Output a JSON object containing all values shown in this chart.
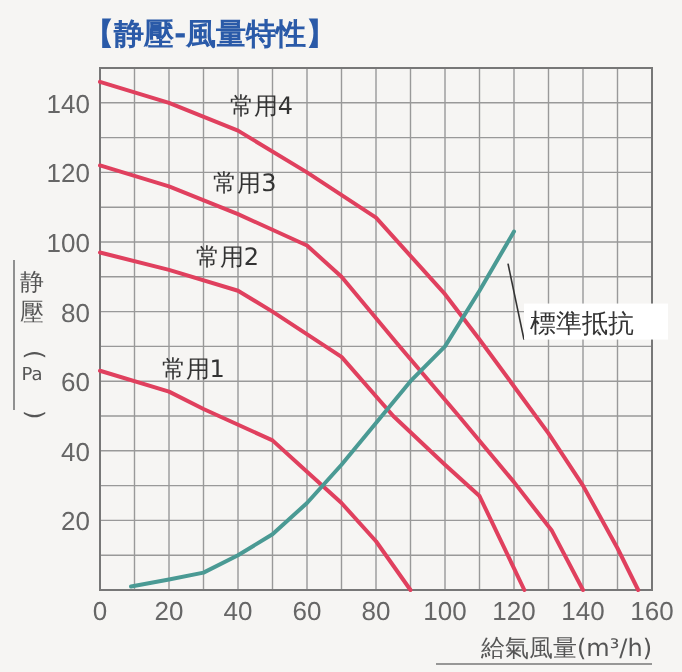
{
  "chart_data": {
    "type": "line",
    "title": "【静壓-風量特性】",
    "xlabel": "給氣風量(m³/h)",
    "ylabel": "静壓(Pa)",
    "xlim": [
      0,
      160
    ],
    "ylim": [
      0,
      150
    ],
    "xticks": [
      0,
      {
        "value": 10,
        "label": null
      },
      20,
      {
        "value": 30,
        "label": null
      },
      40,
      {
        "value": 50,
        "label": null
      },
      60,
      {
        "value": 70,
        "label": null
      },
      80,
      {
        "value": 90,
        "label": null
      },
      100,
      {
        "value": 110,
        "label": null
      },
      120,
      {
        "value": 130,
        "label": null
      },
      140,
      {
        "value": 150,
        "label": null
      },
      160
    ],
    "yticks": [
      {
        "value": 10,
        "label": null
      },
      20,
      {
        "value": 30,
        "label": null
      },
      40,
      {
        "value": 50,
        "label": null
      },
      60,
      {
        "value": 70,
        "label": null
      },
      80,
      {
        "value": 90,
        "label": null
      },
      100,
      {
        "value": 110,
        "label": null
      },
      120,
      {
        "value": 130,
        "label": null
      },
      140,
      {
        "value": 150,
        "label": null
      }
    ],
    "grid": true,
    "marker": "none",
    "line_style": "solid",
    "series": [
      {
        "name": "常用1",
        "color": "#e0405e",
        "x": [
          0,
          20,
          30,
          50,
          60,
          70,
          80,
          90
        ],
        "values": [
          63,
          57,
          52,
          43,
          34,
          25,
          14,
          0
        ]
      },
      {
        "name": "常用2",
        "color": "#e0405e",
        "x": [
          0,
          20,
          40,
          50,
          70,
          85,
          100,
          110,
          123
        ],
        "values": [
          97,
          92,
          86,
          80,
          67,
          50,
          36,
          27,
          0
        ]
      },
      {
        "name": "常用3",
        "color": "#e0405e",
        "x": [
          0,
          20,
          40,
          60,
          70,
          86,
          104,
          120,
          131,
          140
        ],
        "values": [
          122,
          116,
          108,
          99,
          90,
          71,
          50,
          31,
          17,
          0
        ]
      },
      {
        "name": "常用4",
        "color": "#e0405e",
        "x": [
          0,
          20,
          40,
          60,
          80,
          100,
          110,
          130,
          140,
          150,
          156
        ],
        "values": [
          146,
          140,
          132,
          120,
          107,
          85,
          72,
          45,
          30,
          12,
          0
        ]
      },
      {
        "name": "標準抵抗",
        "color": "#4a9a94",
        "x": [
          9,
          20,
          30,
          40,
          50,
          60,
          70,
          80,
          90,
          100,
          110,
          120
        ],
        "values": [
          1,
          3,
          5,
          10,
          16,
          25,
          36,
          48,
          60,
          70,
          86,
          103
        ]
      }
    ]
  }
}
